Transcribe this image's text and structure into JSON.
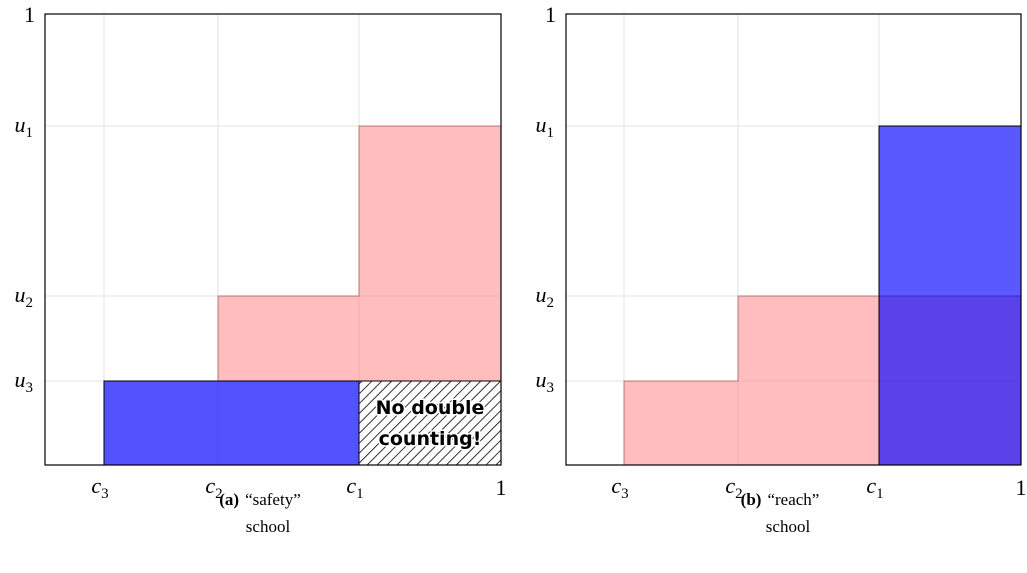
{
  "panels": [
    {
      "y_top": "1",
      "y_labels": [
        {
          "base": "u",
          "sub": "1"
        },
        {
          "base": "u",
          "sub": "2"
        },
        {
          "base": "u",
          "sub": "3"
        }
      ],
      "x_labels": [
        {
          "base": "c",
          "sub": "3"
        },
        {
          "base": "c",
          "sub": "2"
        },
        {
          "base": "c",
          "sub": "1"
        }
      ],
      "x_end": "1",
      "annotation": [
        "No double",
        "counting!"
      ],
      "caption": {
        "label": "(a)",
        "lines": [
          "“safety”",
          "school"
        ]
      }
    },
    {
      "y_top": "1",
      "y_labels": [
        {
          "base": "u",
          "sub": "1"
        },
        {
          "base": "u",
          "sub": "2"
        },
        {
          "base": "u",
          "sub": "3"
        }
      ],
      "x_labels": [
        {
          "base": "c",
          "sub": "3"
        },
        {
          "base": "c",
          "sub": "2"
        },
        {
          "base": "c",
          "sub": "1"
        }
      ],
      "x_end": "1",
      "caption": {
        "label": "(b)",
        "lines": [
          "“reach”",
          "school"
        ]
      }
    }
  ]
}
